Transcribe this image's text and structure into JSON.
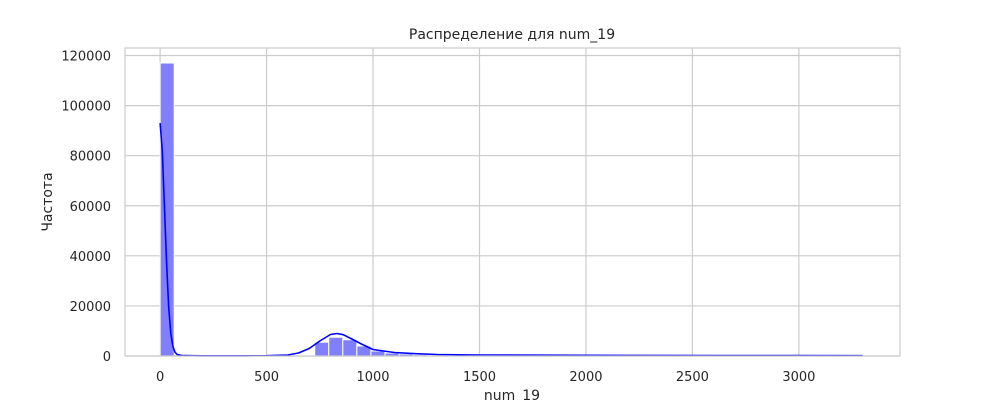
{
  "chart_data": {
    "type": "bar",
    "title": "Распределение для num_19",
    "xlabel": "num_19",
    "ylabel": "Частота",
    "xlim": [
      -165,
      3475
    ],
    "ylim": [
      0,
      123000
    ],
    "x_ticks": [
      0,
      500,
      1000,
      1500,
      2000,
      2500,
      3000
    ],
    "y_ticks": [
      0,
      20000,
      40000,
      60000,
      80000,
      100000,
      120000
    ],
    "grid": true,
    "bar_color": "#8080ff",
    "kde_color": "#0000ff",
    "bin_width": 66,
    "bins": [
      {
        "x0": 0,
        "count": 117000
      },
      {
        "x0": 66,
        "count": 500
      },
      {
        "x0": 660,
        "count": 300
      },
      {
        "x0": 726,
        "count": 5500
      },
      {
        "x0": 792,
        "count": 7500
      },
      {
        "x0": 858,
        "count": 6500
      },
      {
        "x0": 924,
        "count": 4000
      },
      {
        "x0": 990,
        "count": 2000
      },
      {
        "x0": 1056,
        "count": 1200
      },
      {
        "x0": 1122,
        "count": 800
      },
      {
        "x0": 1188,
        "count": 500
      },
      {
        "x0": 1254,
        "count": 400
      },
      {
        "x0": 1320,
        "count": 300
      },
      {
        "x0": 1386,
        "count": 250
      },
      {
        "x0": 1452,
        "count": 200
      }
    ],
    "kde": {
      "x": [
        0,
        10,
        20,
        30,
        40,
        50,
        60,
        70,
        80,
        100,
        150,
        200,
        300,
        400,
        500,
        600,
        650,
        700,
        750,
        800,
        830,
        860,
        900,
        950,
        1000,
        1100,
        1200,
        1300,
        1500,
        1800,
        2200,
        2600,
        3000,
        3300
      ],
      "y": [
        93000,
        82000,
        60000,
        38000,
        20000,
        9000,
        3800,
        1500,
        600,
        250,
        100,
        80,
        80,
        80,
        100,
        400,
        1200,
        3000,
        6000,
        8600,
        9000,
        8500,
        6800,
        4600,
        2600,
        1400,
        900,
        600,
        400,
        300,
        250,
        200,
        150,
        100
      ]
    }
  }
}
